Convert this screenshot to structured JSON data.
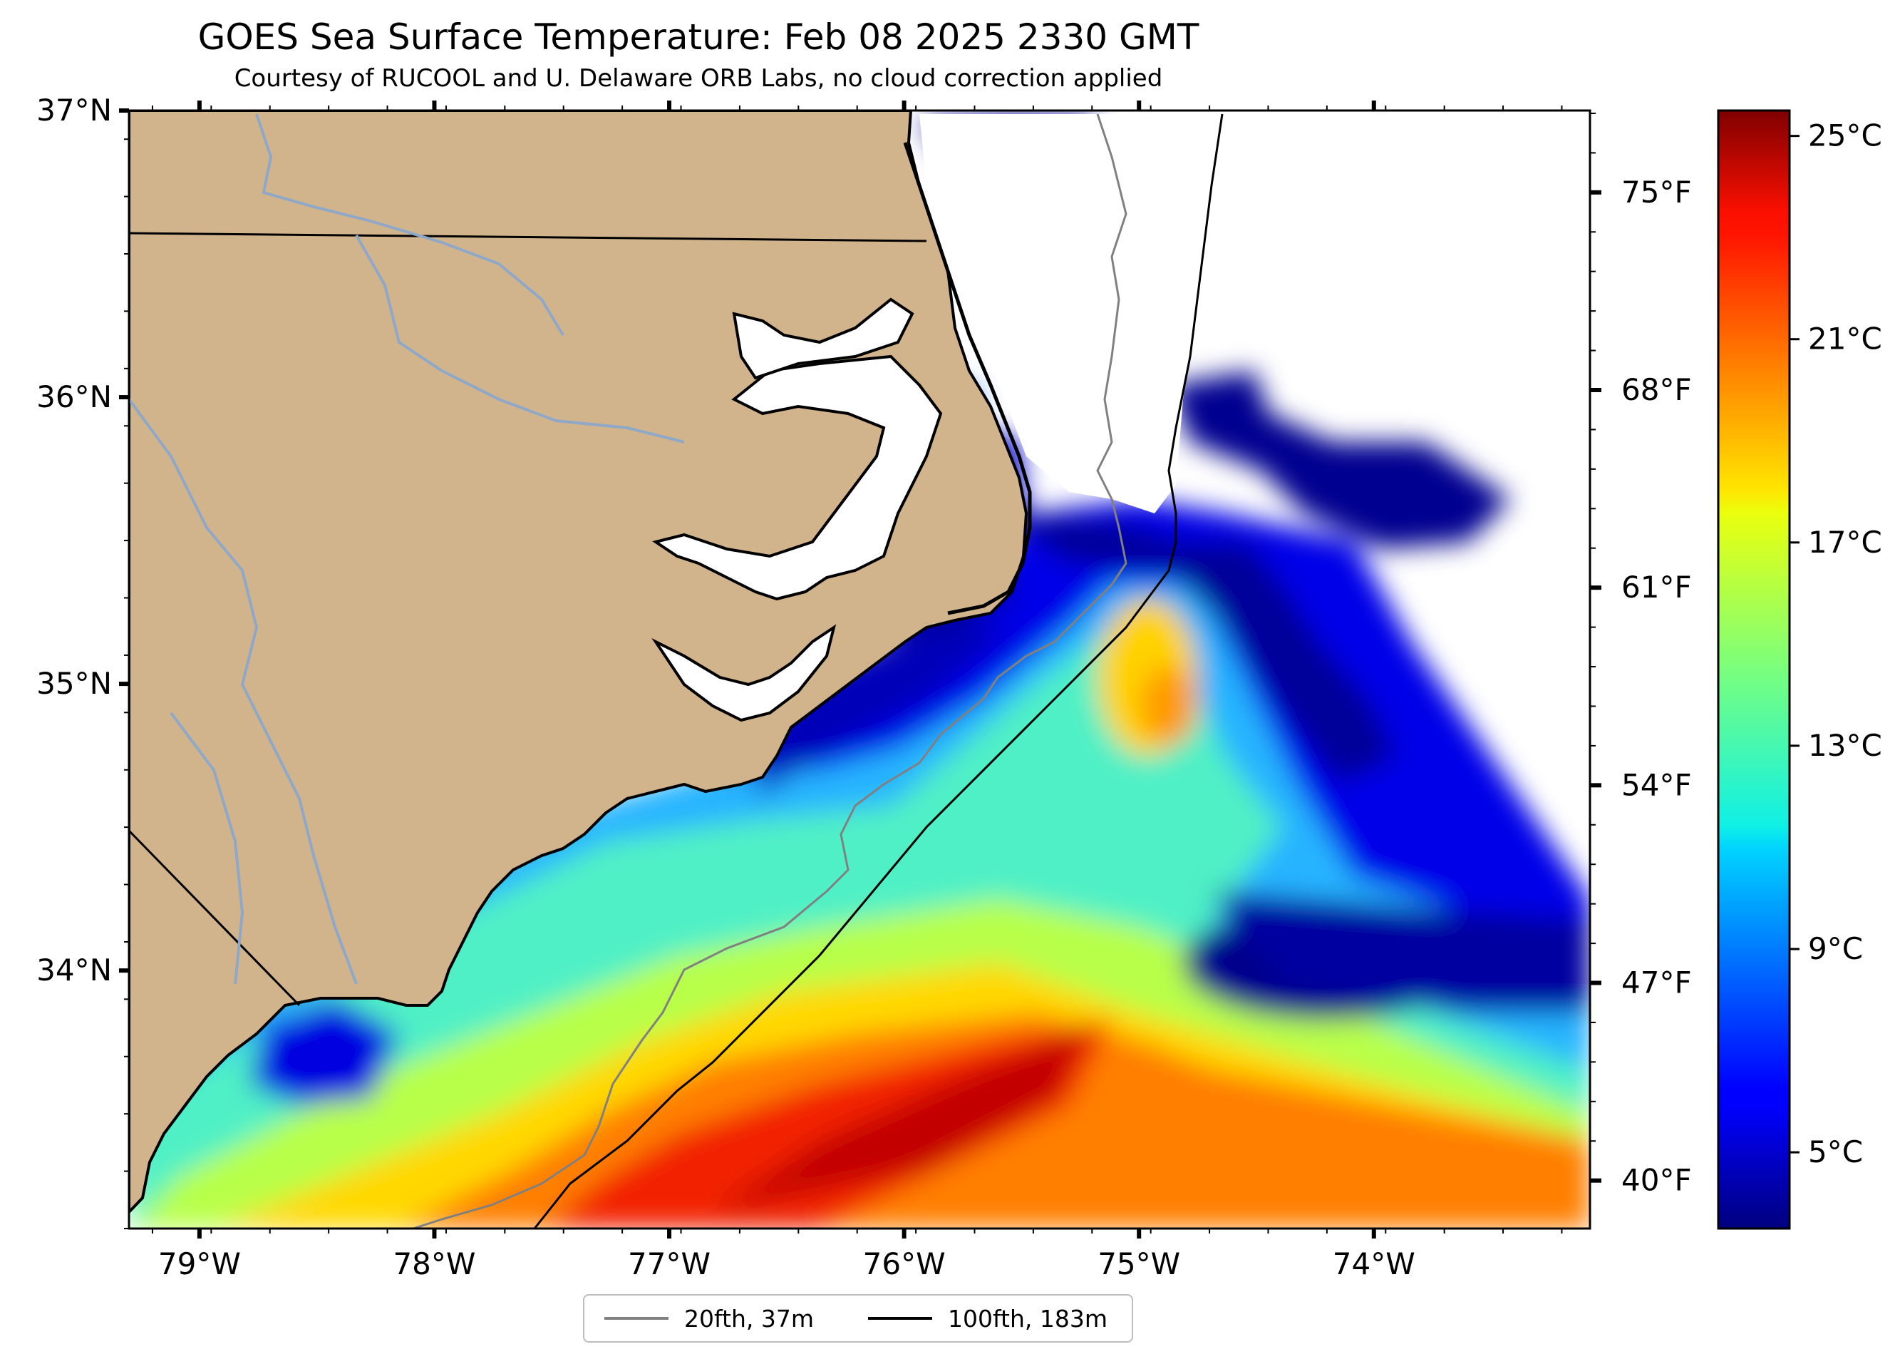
{
  "title": "GOES Sea Surface Temperature: Feb 08 2025 2330 GMT",
  "subtitle": "Courtesy of RUCOOL and U. Delaware ORB Labs, no cloud correction applied",
  "map": {
    "lat_range": [
      33.1,
      37.0
    ],
    "lon_range": [
      -79.3,
      -73.08
    ],
    "lat_labels": [
      {
        "value": 37,
        "text": "37°N"
      },
      {
        "value": 36,
        "text": "36°N"
      },
      {
        "value": 35,
        "text": "35°N"
      },
      {
        "value": 34,
        "text": "34°N"
      }
    ],
    "lon_labels": [
      {
        "value": -79,
        "text": "79°W"
      },
      {
        "value": -78,
        "text": "78°W"
      },
      {
        "value": -77,
        "text": "77°W"
      },
      {
        "value": -76,
        "text": "76°W"
      },
      {
        "value": -75,
        "text": "75°W"
      },
      {
        "value": -74,
        "text": "74°W"
      }
    ],
    "fahrenheit_labels": [
      {
        "value": 75,
        "text": "75°F"
      },
      {
        "value": 68,
        "text": "68°F"
      },
      {
        "value": 61,
        "text": "61°F"
      },
      {
        "value": 54,
        "text": "54°F"
      },
      {
        "value": 47,
        "text": "47°F"
      },
      {
        "value": 40,
        "text": "40°F"
      }
    ],
    "colors": {
      "land": "#d2b48c",
      "river": "#8fa8c8",
      "isobath_20fth": "#808080",
      "isobath_100fth": "#000000",
      "no_data": "#ffffff"
    }
  },
  "colorbar": {
    "range_c": [
      3.5,
      25.5
    ],
    "colormap": "jet",
    "ticks": [
      {
        "value": 25,
        "text": "25°C"
      },
      {
        "value": 21,
        "text": "21°C"
      },
      {
        "value": 17,
        "text": "17°C"
      },
      {
        "value": 13,
        "text": "13°C"
      },
      {
        "value": 9,
        "text": "9°C"
      },
      {
        "value": 5,
        "text": "5°C"
      }
    ]
  },
  "legend": {
    "items": [
      {
        "label": "20fth, 37m",
        "color": "#808080"
      },
      {
        "label": "100fth, 183m",
        "color": "#000000"
      }
    ]
  }
}
